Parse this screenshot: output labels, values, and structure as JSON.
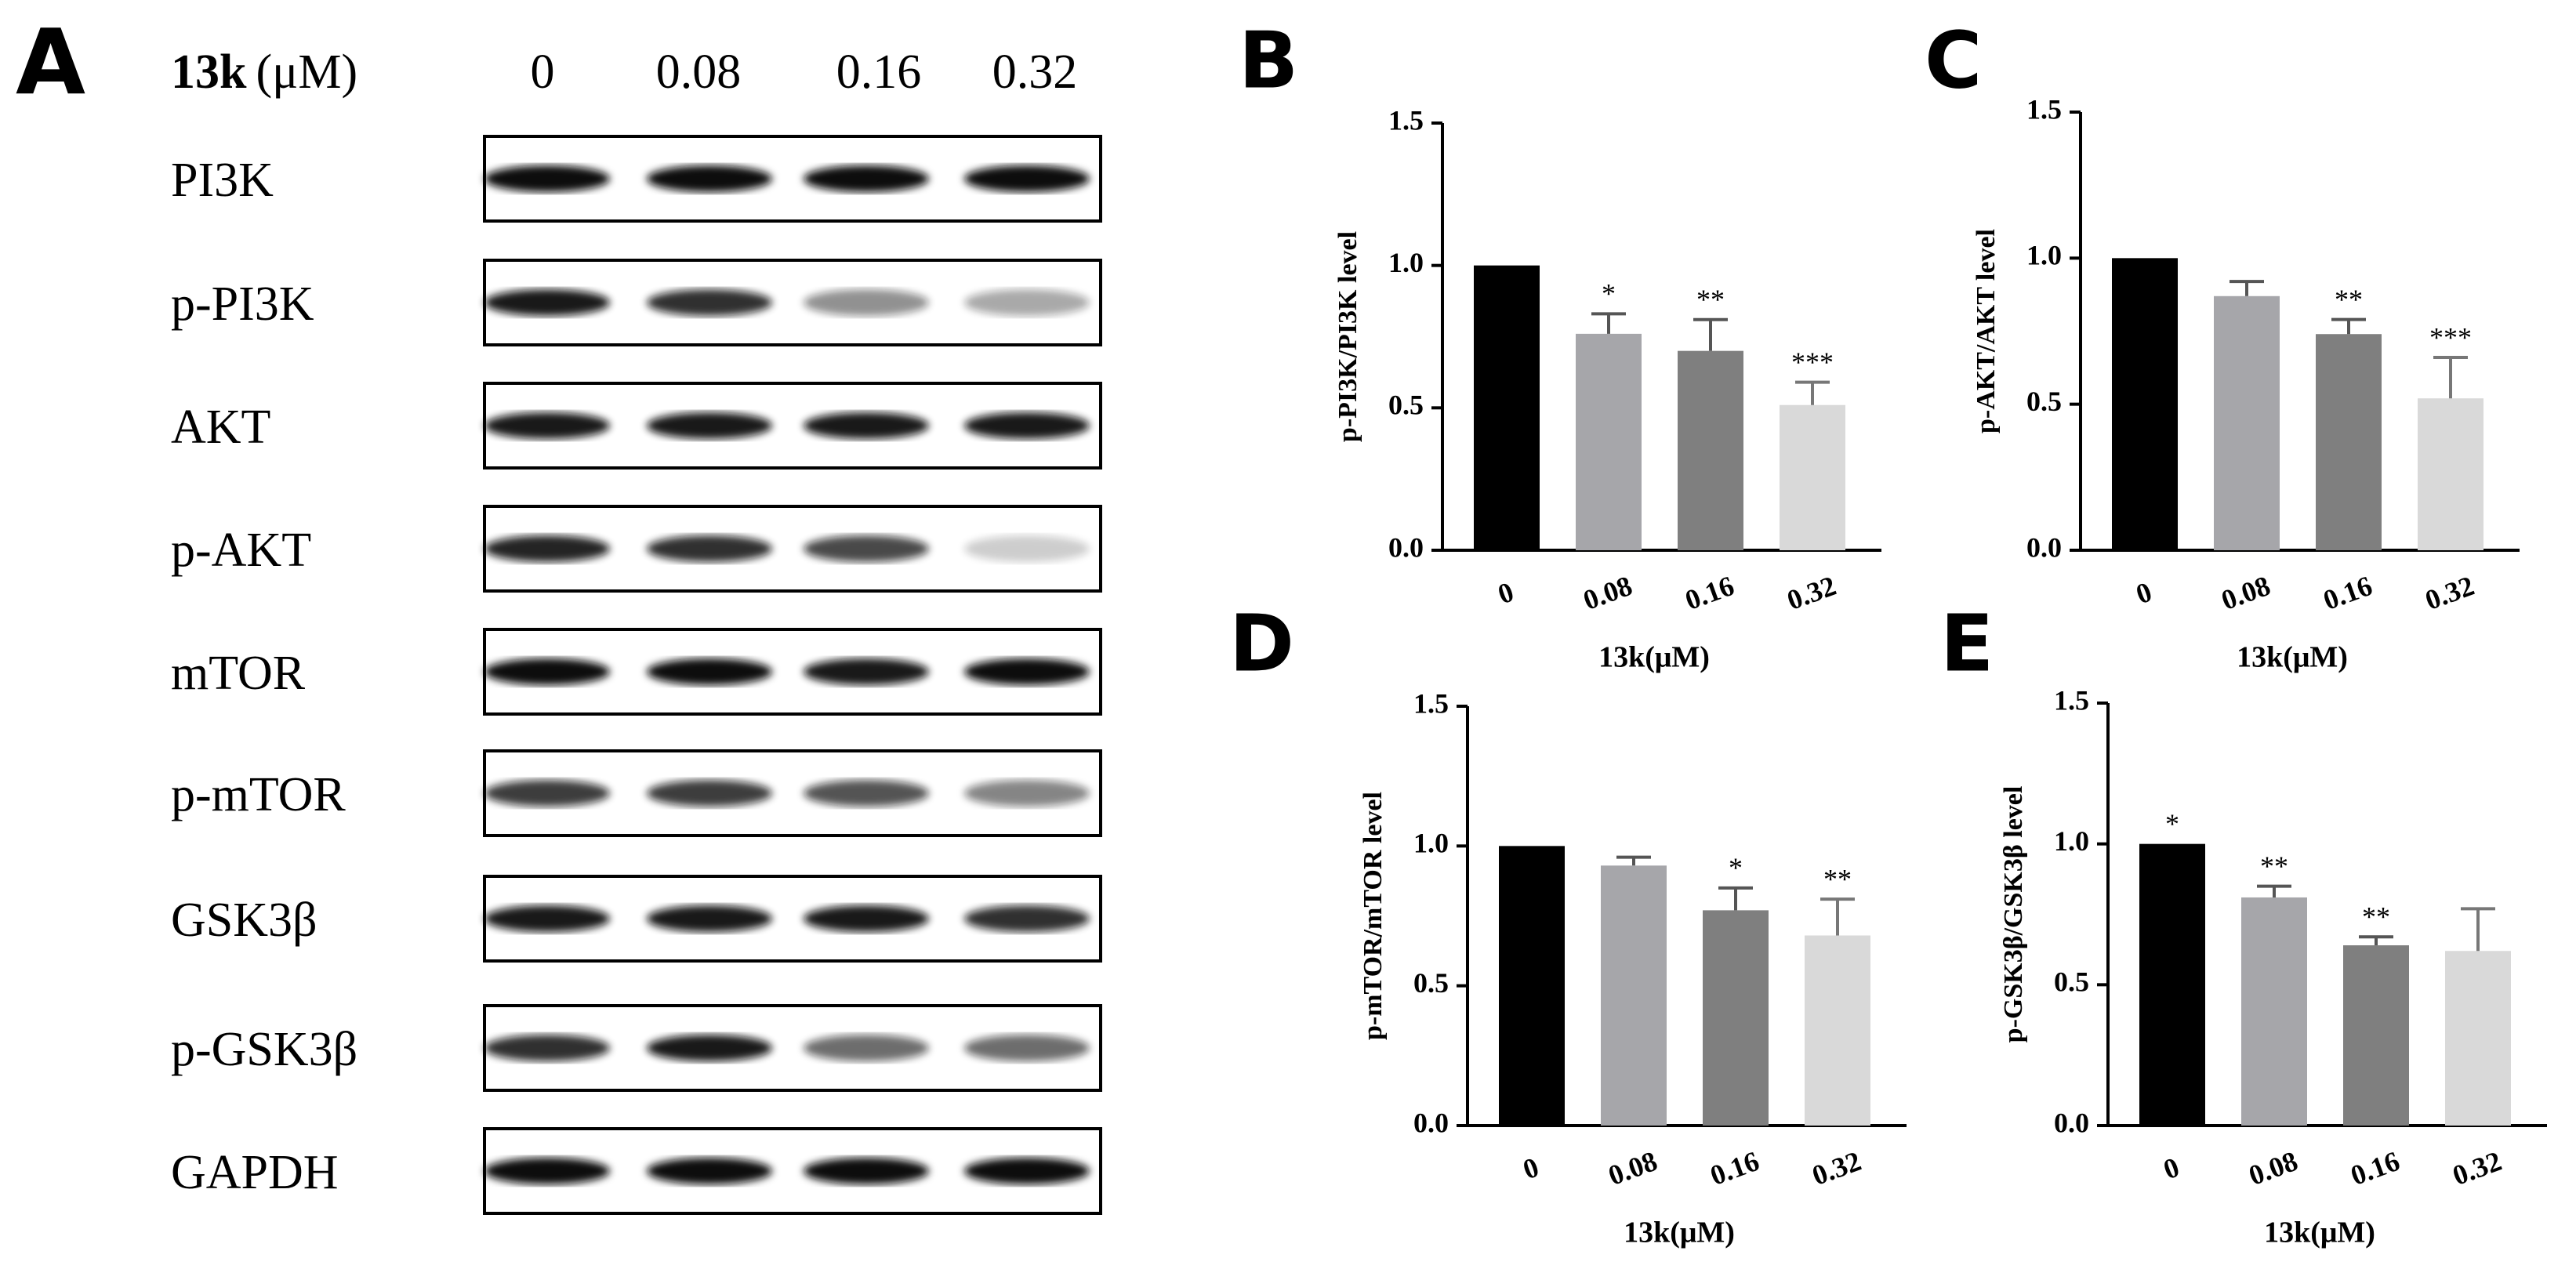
{
  "blot": {
    "panel": "A",
    "compound": "13k",
    "unit": "(μM)",
    "lanes": [
      "0",
      "0.08",
      "0.16",
      "0.32"
    ],
    "proteins": [
      "PI3K",
      "p-PI3K",
      "AKT",
      "p-AKT",
      "mTOR",
      "p-mTOR",
      "GSK3β",
      "p-GSK3β",
      "GAPDH"
    ]
  },
  "chart_data": [
    {
      "type": "bar",
      "panel": "B",
      "ylabel": "p-PI3K/PI3K level",
      "xlabel": "13k(μM)",
      "categories": [
        "0",
        "0.08",
        "0.16",
        "0.32"
      ],
      "values": [
        1.0,
        0.76,
        0.7,
        0.51
      ],
      "errors": [
        null,
        0.07,
        0.11,
        0.08
      ],
      "annotations": [
        null,
        "*",
        "**",
        "***"
      ],
      "colors": [
        "#000000",
        "#a6a6aa",
        "#7f7f7f",
        "#d9d9d9"
      ],
      "ylim": [
        0,
        1.5
      ],
      "yticks": [
        {
          "value": 0,
          "label": "0.0"
        },
        0.5,
        {
          "value": 1,
          "label": "1.0"
        },
        1.5
      ]
    },
    {
      "type": "bar",
      "panel": "C",
      "ylabel": "p-AKT/AKT level",
      "xlabel": "13k(μM)",
      "categories": [
        "0",
        "0.08",
        "0.16",
        "0.32"
      ],
      "values": [
        1.0,
        0.87,
        0.74,
        0.52
      ],
      "errors": [
        null,
        0.05,
        0.05,
        0.14
      ],
      "annotations": [
        null,
        null,
        "**",
        "***"
      ],
      "colors": [
        "#000000",
        "#a6a6aa",
        "#7f7f7f",
        "#d9d9d9"
      ],
      "ylim": [
        0,
        1.5
      ],
      "yticks": [
        {
          "value": 0,
          "label": "0.0"
        },
        0.5,
        {
          "value": 1,
          "label": "1.0"
        },
        1.5
      ]
    },
    {
      "type": "bar",
      "panel": "D",
      "ylabel": "p-mTOR/mTOR level",
      "xlabel": "13k(μM)",
      "categories": [
        "0",
        "0.08",
        "0.16",
        "0.32"
      ],
      "values": [
        1.0,
        0.93,
        0.77,
        0.68
      ],
      "errors": [
        null,
        0.03,
        0.08,
        0.13
      ],
      "annotations": [
        null,
        null,
        "*",
        "**"
      ],
      "colors": [
        "#000000",
        "#a6a6aa",
        "#7f7f7f",
        "#d9d9d9"
      ],
      "ylim": [
        0,
        1.5
      ],
      "yticks": [
        {
          "value": 0,
          "label": "0.0"
        },
        0.5,
        {
          "value": 1,
          "label": "1.0"
        },
        1.5
      ]
    },
    {
      "type": "bar",
      "panel": "E",
      "ylabel": "p-GSK3β/GSK3β level",
      "xlabel": "13k(μM)",
      "categories": [
        "0",
        "0.08",
        "0.16",
        "0.32"
      ],
      "values": [
        1.0,
        0.81,
        0.64,
        0.62
      ],
      "errors": [
        null,
        0.04,
        0.03,
        0.15
      ],
      "annotations": [
        "*",
        "**",
        "**",
        null
      ],
      "colors": [
        "#000000",
        "#a6a6aa",
        "#7f7f7f",
        "#d9d9d9"
      ],
      "ylim": [
        0,
        1.5
      ],
      "yticks": [
        {
          "value": 0,
          "label": "0.0"
        },
        0.5,
        {
          "value": 1,
          "label": "1.0"
        },
        1.5
      ]
    }
  ]
}
